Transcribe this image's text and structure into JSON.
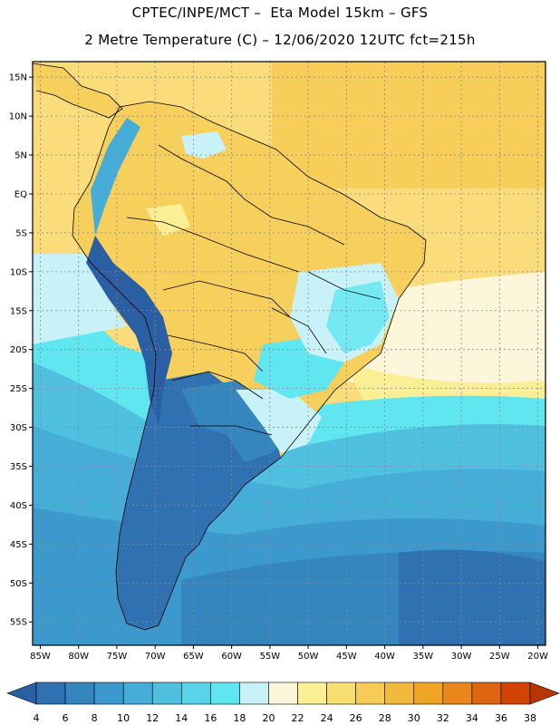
{
  "header": {
    "line1": "CPTEC/INPE/MCT –  Eta Model 15km – GFS",
    "line2": "2 Metre Temperature (C) – 12/06/2020 12UTC fct=215h"
  },
  "map": {
    "lat_labels": [
      "15N",
      "10N",
      "5N",
      "EQ",
      "5S",
      "10S",
      "15S",
      "20S",
      "25S",
      "30S",
      "35S",
      "40S",
      "45S",
      "50S",
      "55S"
    ],
    "lon_labels": [
      "85W",
      "80W",
      "75W",
      "70W",
      "65W",
      "60W",
      "55W",
      "50W",
      "45W",
      "40W",
      "35W",
      "30W",
      "25W",
      "20W"
    ],
    "colors": {
      "ocean_warm": "#fcf7c8",
      "land_warm": "#f6cf5c",
      "tropical_ocean": "#fbdc7a",
      "ocean_cool": "#5ad8e6",
      "ocean_cold": "#3a9bcc",
      "andes": "#2d66a8",
      "border": "#000000",
      "grid": "#7f7f7f"
    }
  },
  "colorbar": {
    "labels": [
      "4",
      "6",
      "8",
      "10",
      "12",
      "14",
      "16",
      "18",
      "20",
      "22",
      "24",
      "26",
      "28",
      "30",
      "32",
      "34",
      "36",
      "38"
    ],
    "colors": [
      "#2a5fa4",
      "#2f71b1",
      "#3585bf",
      "#3c99cd",
      "#45add7",
      "#4fc0df",
      "#58d3e8",
      "#5fe6f0",
      "#c9f2f8",
      "#fdf6da",
      "#fbef96",
      "#f9df72",
      "#f6cc57",
      "#f2ba3d",
      "#eea524",
      "#e8871c",
      "#df6511",
      "#d14307",
      "#b83503"
    ]
  }
}
